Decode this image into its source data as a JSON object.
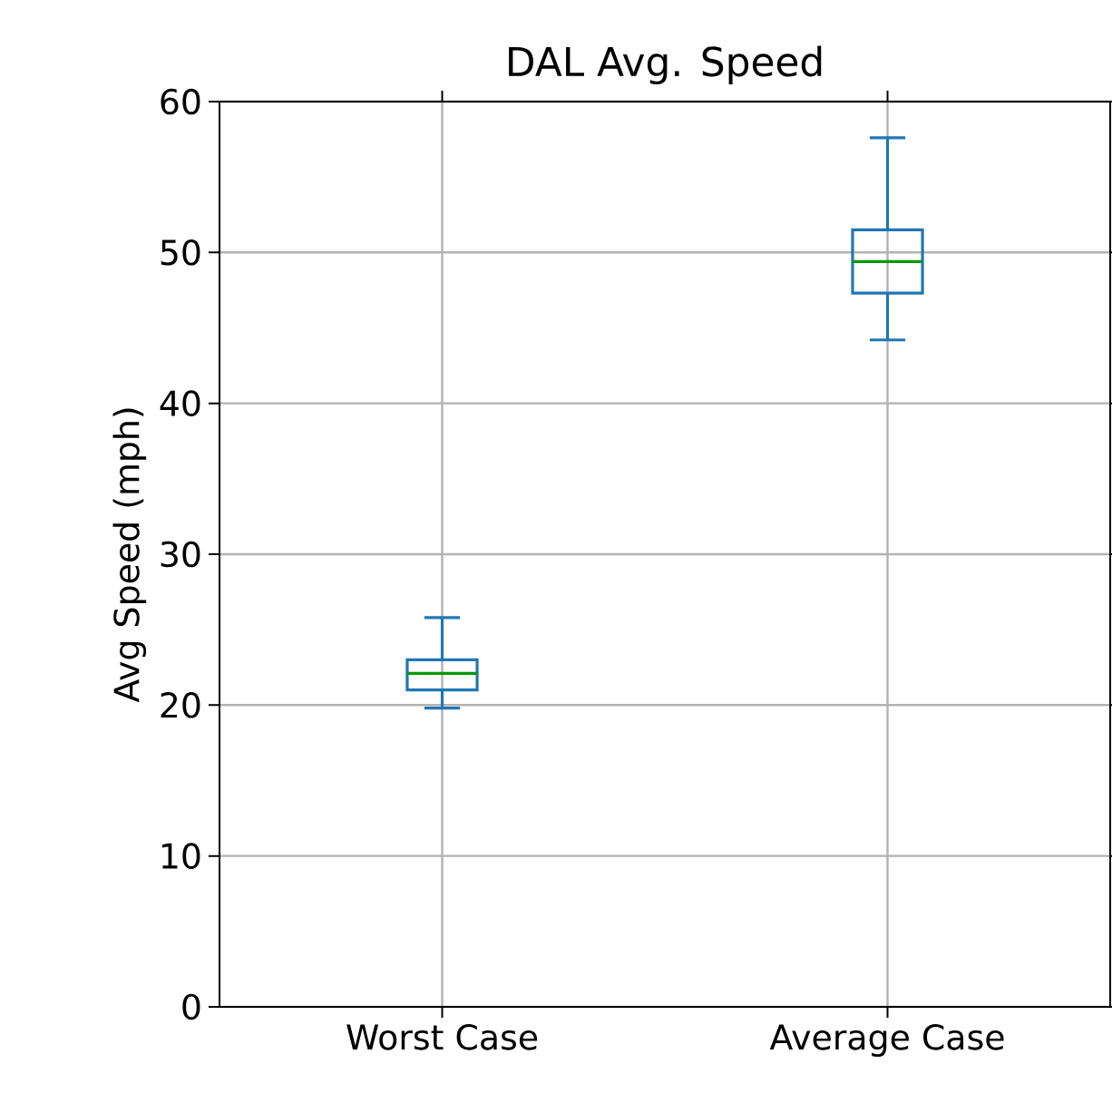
{
  "chart_data": {
    "type": "box",
    "title": "DAL Avg. Speed",
    "ylabel": "Avg Speed (mph)",
    "categories": [
      "Worst Case",
      "Average Case"
    ],
    "color": "#1f77b4",
    "boxes": [
      {
        "low": 19.8,
        "q1": 21.0,
        "median": 22.1,
        "q3": 23.0,
        "high": 25.8
      },
      {
        "low": 44.2,
        "q1": 47.3,
        "median": 49.4,
        "q3": 51.5,
        "high": 57.6
      }
    ],
    "ylim": [
      0,
      60
    ],
    "yticks": [
      0,
      10,
      20,
      30,
      40,
      50,
      60
    ],
    "grid": true
  }
}
